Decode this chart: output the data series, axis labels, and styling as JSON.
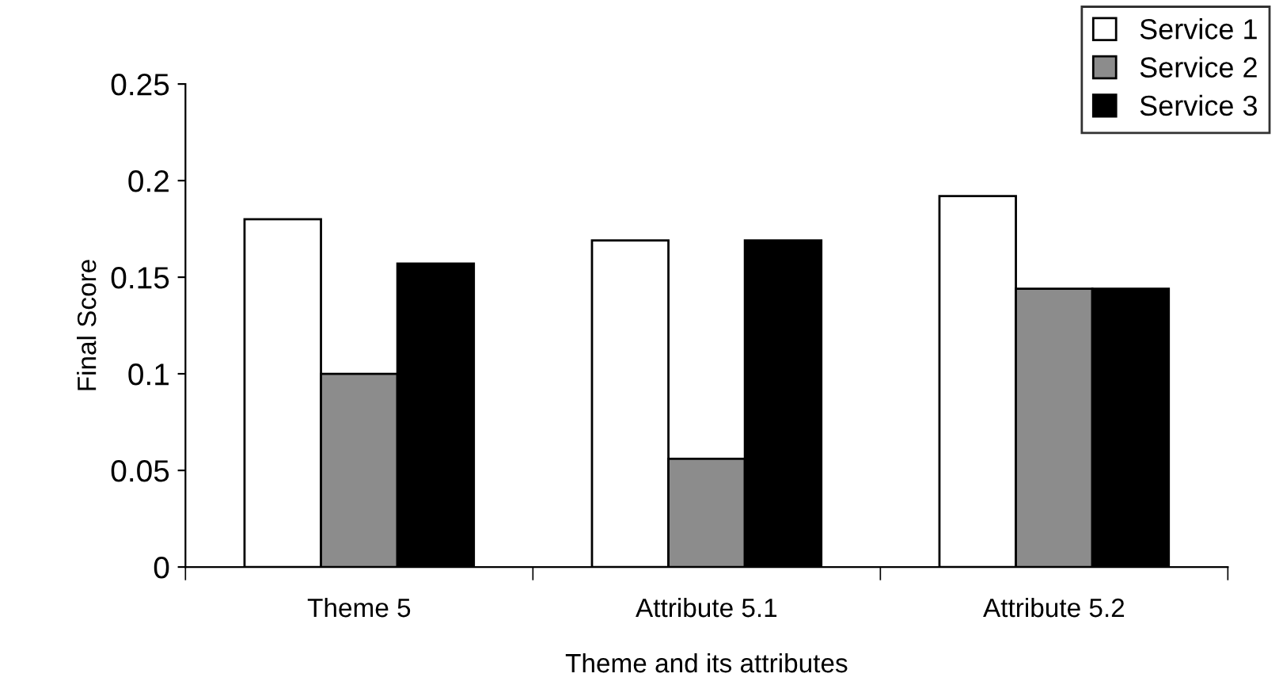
{
  "chart_data": {
    "type": "bar",
    "xlabel": "Theme and its attributes",
    "ylabel": "Final Score",
    "categories": [
      "Theme 5",
      "Attribute 5.1",
      "Attribute 5.2"
    ],
    "series": [
      {
        "name": "Service 1",
        "color": "#ffffff",
        "values": [
          0.18,
          0.169,
          0.192
        ]
      },
      {
        "name": "Service 2",
        "color": "#8c8c8c",
        "values": [
          0.1,
          0.056,
          0.144
        ]
      },
      {
        "name": "Service 3",
        "color": "#000000",
        "values": [
          0.157,
          0.169,
          0.144
        ]
      }
    ],
    "ylim": [
      0,
      0.25
    ],
    "yticks": [
      0,
      0.05,
      0.1,
      0.15,
      0.2,
      0.25
    ],
    "grid": false,
    "legend": "top right"
  }
}
